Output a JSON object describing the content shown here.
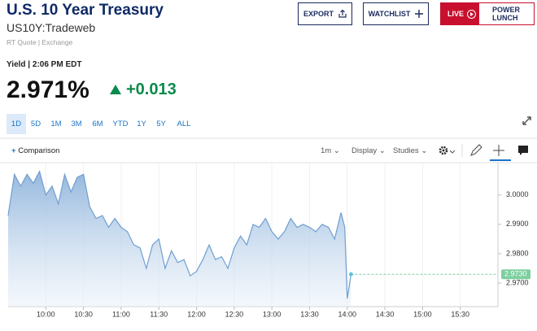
{
  "header": {
    "title": "U.S. 10 Year Treasury",
    "symbol": "US10Y:Tradeweb",
    "quote_source": "RT Quote | Exchange",
    "buttons": [
      "EXPORT",
      "WATCHLIST"
    ],
    "live": {
      "badge": "LIVE",
      "show": "POWER LUNCH"
    }
  },
  "quote": {
    "label": "Yield",
    "time": "2:06 PM EDT",
    "last": "2.971%",
    "change": "+0.013"
  },
  "range_buttons": [
    "1D",
    "5D",
    "1M",
    "3M",
    "6M",
    "YTD",
    "1Y",
    "5Y",
    "ALL"
  ],
  "toolbar": {
    "comparison": "Comparison",
    "interval": "1m",
    "display": "Display",
    "studies": "Studies"
  },
  "chart_data": {
    "type": "area",
    "color": "#6f9fd0",
    "x": [
      "09:30",
      "09:35",
      "09:40",
      "09:45",
      "09:50",
      "09:55",
      "10:00",
      "10:05",
      "10:10",
      "10:15",
      "10:20",
      "10:25",
      "10:30",
      "10:35",
      "10:40",
      "10:45",
      "10:50",
      "10:55",
      "11:00",
      "11:05",
      "11:10",
      "11:15",
      "11:20",
      "11:25",
      "11:30",
      "11:35",
      "11:40",
      "11:45",
      "11:50",
      "11:55",
      "12:00",
      "12:05",
      "12:10",
      "12:15",
      "12:20",
      "12:25",
      "12:30",
      "12:35",
      "12:40",
      "12:45",
      "12:50",
      "12:55",
      "13:00",
      "13:05",
      "13:10",
      "13:15",
      "13:20",
      "13:25",
      "13:30",
      "13:35",
      "13:40",
      "13:45",
      "13:50",
      "13:55",
      "13:58",
      "14:00",
      "14:03"
    ],
    "values": [
      2.993,
      3.007,
      3.003,
      3.007,
      3.004,
      3.008,
      3.0,
      3.003,
      2.997,
      3.007,
      3.001,
      3.006,
      3.007,
      2.996,
      2.992,
      2.993,
      2.989,
      2.992,
      2.989,
      2.9875,
      2.983,
      2.982,
      2.975,
      2.983,
      2.985,
      2.975,
      2.981,
      2.977,
      2.978,
      2.9725,
      2.974,
      2.978,
      2.983,
      2.978,
      2.979,
      2.975,
      2.982,
      2.986,
      2.983,
      2.99,
      2.989,
      2.992,
      2.9875,
      2.985,
      2.9875,
      2.992,
      2.989,
      2.99,
      2.989,
      2.9875,
      2.99,
      2.989,
      2.985,
      2.994,
      2.989,
      2.9647,
      2.973
    ],
    "xlim": [
      "09:30",
      "16:00"
    ],
    "xticks": [
      "10:00",
      "10:30",
      "11:00",
      "11:30",
      "12:00",
      "12:30",
      "13:00",
      "13:30",
      "14:00",
      "14:30",
      "15:00",
      "15:30"
    ],
    "ylim": [
      2.962,
      3.011
    ],
    "yticks": [
      {
        "value": 3.0,
        "label": "3.0000"
      },
      {
        "value": 2.99,
        "label": "2.9900"
      },
      {
        "value": 2.98,
        "label": "2.9800"
      },
      {
        "value": 2.97,
        "label": "2.9700"
      }
    ],
    "last_value": {
      "value": 2.973,
      "label": "2.9730"
    },
    "last_color": "#7dcfa0",
    "grid": true
  }
}
